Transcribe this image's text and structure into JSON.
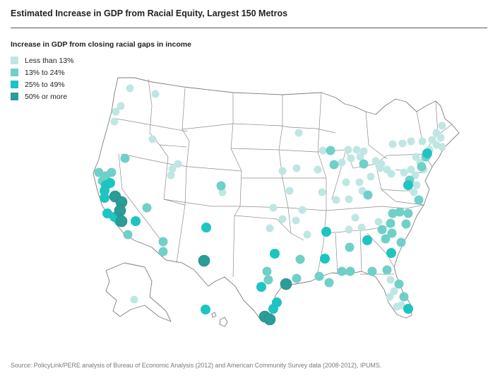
{
  "title": "Estimated Increase in GDP from Racial Equity, Largest 150 Metros",
  "legend": {
    "title": "Increase in GDP from closing racial gaps in income",
    "items": [
      {
        "label": "Less than 13%",
        "color": "#bfe6e3"
      },
      {
        "label": "13% to 24%",
        "color": "#6fd0c8"
      },
      {
        "label": "25% to 49%",
        "color": "#1ec4c0"
      },
      {
        "label": "50% or more",
        "color": "#2b9c98"
      }
    ]
  },
  "source": "Source: PolicyLink/PERE analysis of Bureau of Economic Analysis (2012) and American Community Survey data (2008-2012), IPUMS."
}
